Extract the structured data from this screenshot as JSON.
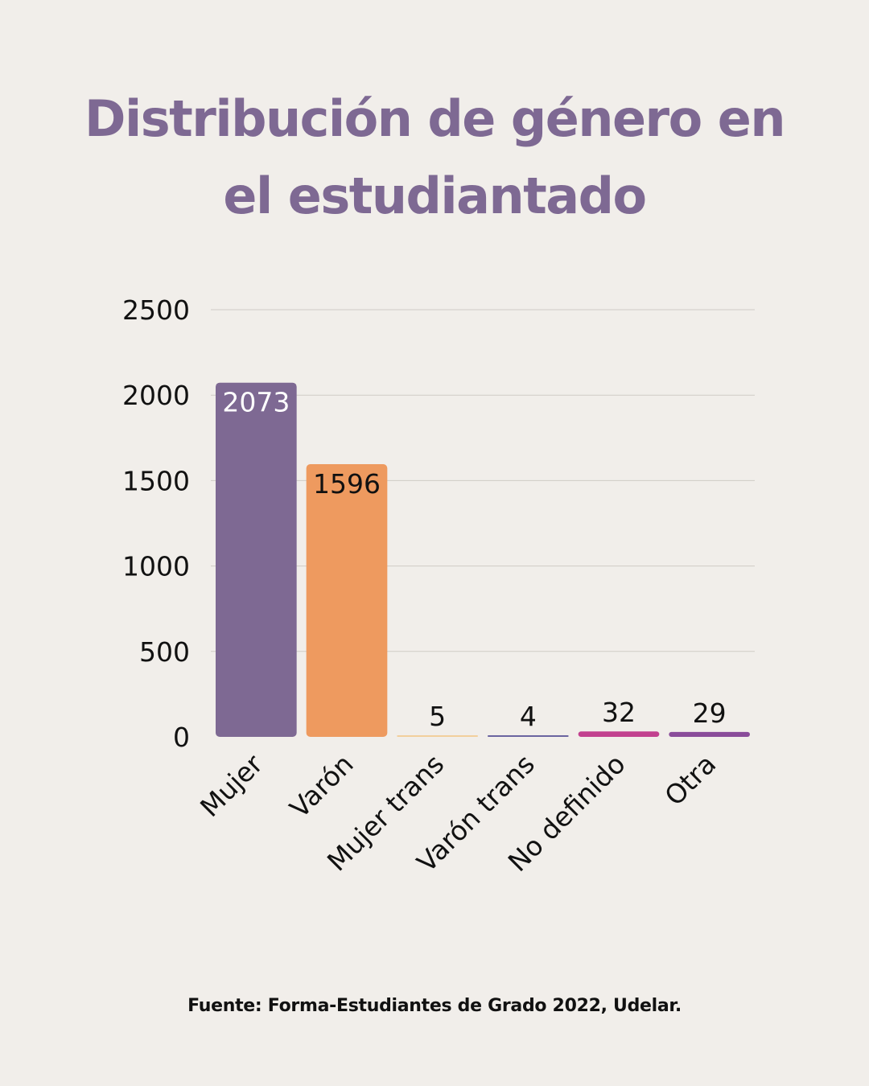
{
  "title_lines": [
    "Distribución de género en",
    "el estudiantado"
  ],
  "source": "Fuente: Forma-Estudiantes de Grado 2022, Udelar.",
  "colors": {
    "background": "#f1eeea",
    "title": "#7e6993",
    "gridline": "#cfcbc6",
    "axis_text": "#111111"
  },
  "chart_data": {
    "type": "bar",
    "categories": [
      "Mujer",
      "Varón",
      "Mujer trans",
      "Varón trans",
      "No definido",
      "Otra"
    ],
    "values": [
      2073,
      1596,
      5,
      4,
      32,
      29
    ],
    "data_labels": [
      "2073",
      "1596",
      "5",
      "4",
      "32",
      "29"
    ],
    "bar_colors": [
      "#7e6993",
      "#ee9a5f",
      "#f2cf9c",
      "#6a64a0",
      "#c2418f",
      "#8a4c9a"
    ],
    "label_inside": [
      true,
      true,
      false,
      false,
      false,
      false
    ],
    "label_colors": [
      "#ffffff",
      "#111111",
      "#111111",
      "#111111",
      "#111111",
      "#111111"
    ],
    "ylim": [
      0,
      2500
    ],
    "yticks": [
      0,
      500,
      1000,
      1500,
      2000,
      2500
    ],
    "grid": true,
    "xlabel": "",
    "ylabel": ""
  }
}
